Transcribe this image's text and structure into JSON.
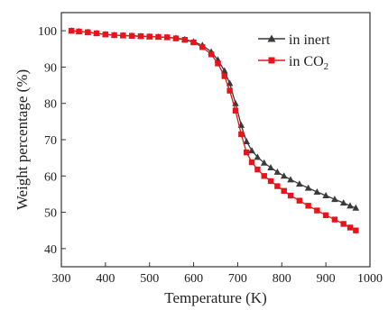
{
  "chart_data": {
    "type": "line",
    "title": "",
    "xlabel": "Temperature (K)",
    "ylabel": "Weight percentage (%)",
    "xlim": [
      300,
      1000
    ],
    "ylim": [
      35,
      105
    ],
    "xticks": [
      "300",
      "400",
      "500",
      "600",
      "700",
      "800",
      "900",
      "1000"
    ],
    "yticks": [
      "40",
      "50",
      "60",
      "70",
      "80",
      "90",
      "100"
    ],
    "legend_position": "top-right",
    "grid": false,
    "series": [
      {
        "name": "in inert",
        "color": "#3a3a3a",
        "marker": "triangle",
        "x": [
          323,
          340,
          360,
          380,
          400,
          420,
          440,
          460,
          480,
          500,
          520,
          540,
          560,
          580,
          600,
          620,
          640,
          655,
          670,
          682,
          695,
          708,
          720,
          732,
          745,
          760,
          775,
          790,
          805,
          820,
          840,
          860,
          880,
          900,
          920,
          940,
          955,
          968
        ],
        "y": [
          100,
          99.8,
          99.6,
          99.3,
          99.0,
          98.8,
          98.7,
          98.6,
          98.5,
          98.4,
          98.3,
          98.2,
          98.0,
          97.6,
          97.0,
          96.0,
          94.2,
          92.0,
          89.0,
          85.5,
          80.0,
          74.0,
          69.5,
          67.0,
          65.2,
          63.6,
          62.3,
          61.1,
          60.0,
          59.0,
          57.8,
          56.7,
          55.6,
          54.6,
          53.6,
          52.6,
          51.8,
          51.2
        ]
      },
      {
        "name": "in CO2",
        "color": "#e8141b",
        "marker": "square",
        "x": [
          323,
          340,
          360,
          380,
          400,
          420,
          440,
          460,
          480,
          500,
          520,
          540,
          560,
          580,
          600,
          620,
          640,
          655,
          670,
          682,
          695,
          708,
          720,
          732,
          745,
          760,
          775,
          790,
          805,
          820,
          840,
          860,
          880,
          900,
          920,
          940,
          955,
          968
        ],
        "y": [
          100,
          99.8,
          99.6,
          99.3,
          99.0,
          98.8,
          98.7,
          98.6,
          98.5,
          98.4,
          98.3,
          98.2,
          97.9,
          97.5,
          96.8,
          95.5,
          93.5,
          91.0,
          87.5,
          83.5,
          78.0,
          71.5,
          66.5,
          63.8,
          61.8,
          60.0,
          58.6,
          57.2,
          55.9,
          54.6,
          53.2,
          51.8,
          50.5,
          49.2,
          48.0,
          46.8,
          45.8,
          45.0
        ]
      }
    ]
  },
  "legend": {
    "item_1_label": "in inert",
    "item_2_main": "in CO",
    "item_2_sub": "2"
  }
}
